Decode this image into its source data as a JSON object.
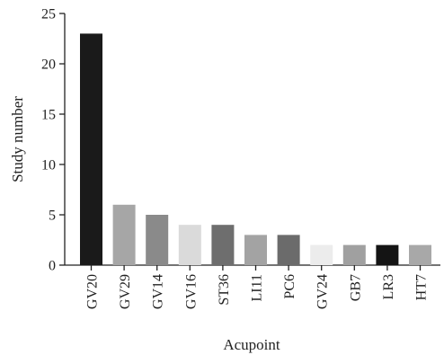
{
  "chart_data": {
    "type": "bar",
    "title": "",
    "xlabel": "Acupoint",
    "ylabel": "Study number",
    "categories": [
      "GV20",
      "GV29",
      "GV14",
      "GV16",
      "ST36",
      "LI11",
      "PC6",
      "GV24",
      "GB7",
      "LR3",
      "HT7"
    ],
    "values": [
      23,
      6,
      5,
      4,
      4,
      3,
      3,
      2,
      2,
      2,
      2
    ],
    "colors": [
      "#1a1a1a",
      "#a6a6a6",
      "#8a8a8a",
      "#dadada",
      "#6e6e6e",
      "#a3a3a3",
      "#6b6b6b",
      "#ececec",
      "#a0a0a0",
      "#141414",
      "#a8a8a8"
    ],
    "ylim": [
      0,
      25
    ],
    "yticks": [
      0,
      5,
      10,
      15,
      20,
      25
    ],
    "grid": false,
    "legend": "none"
  }
}
